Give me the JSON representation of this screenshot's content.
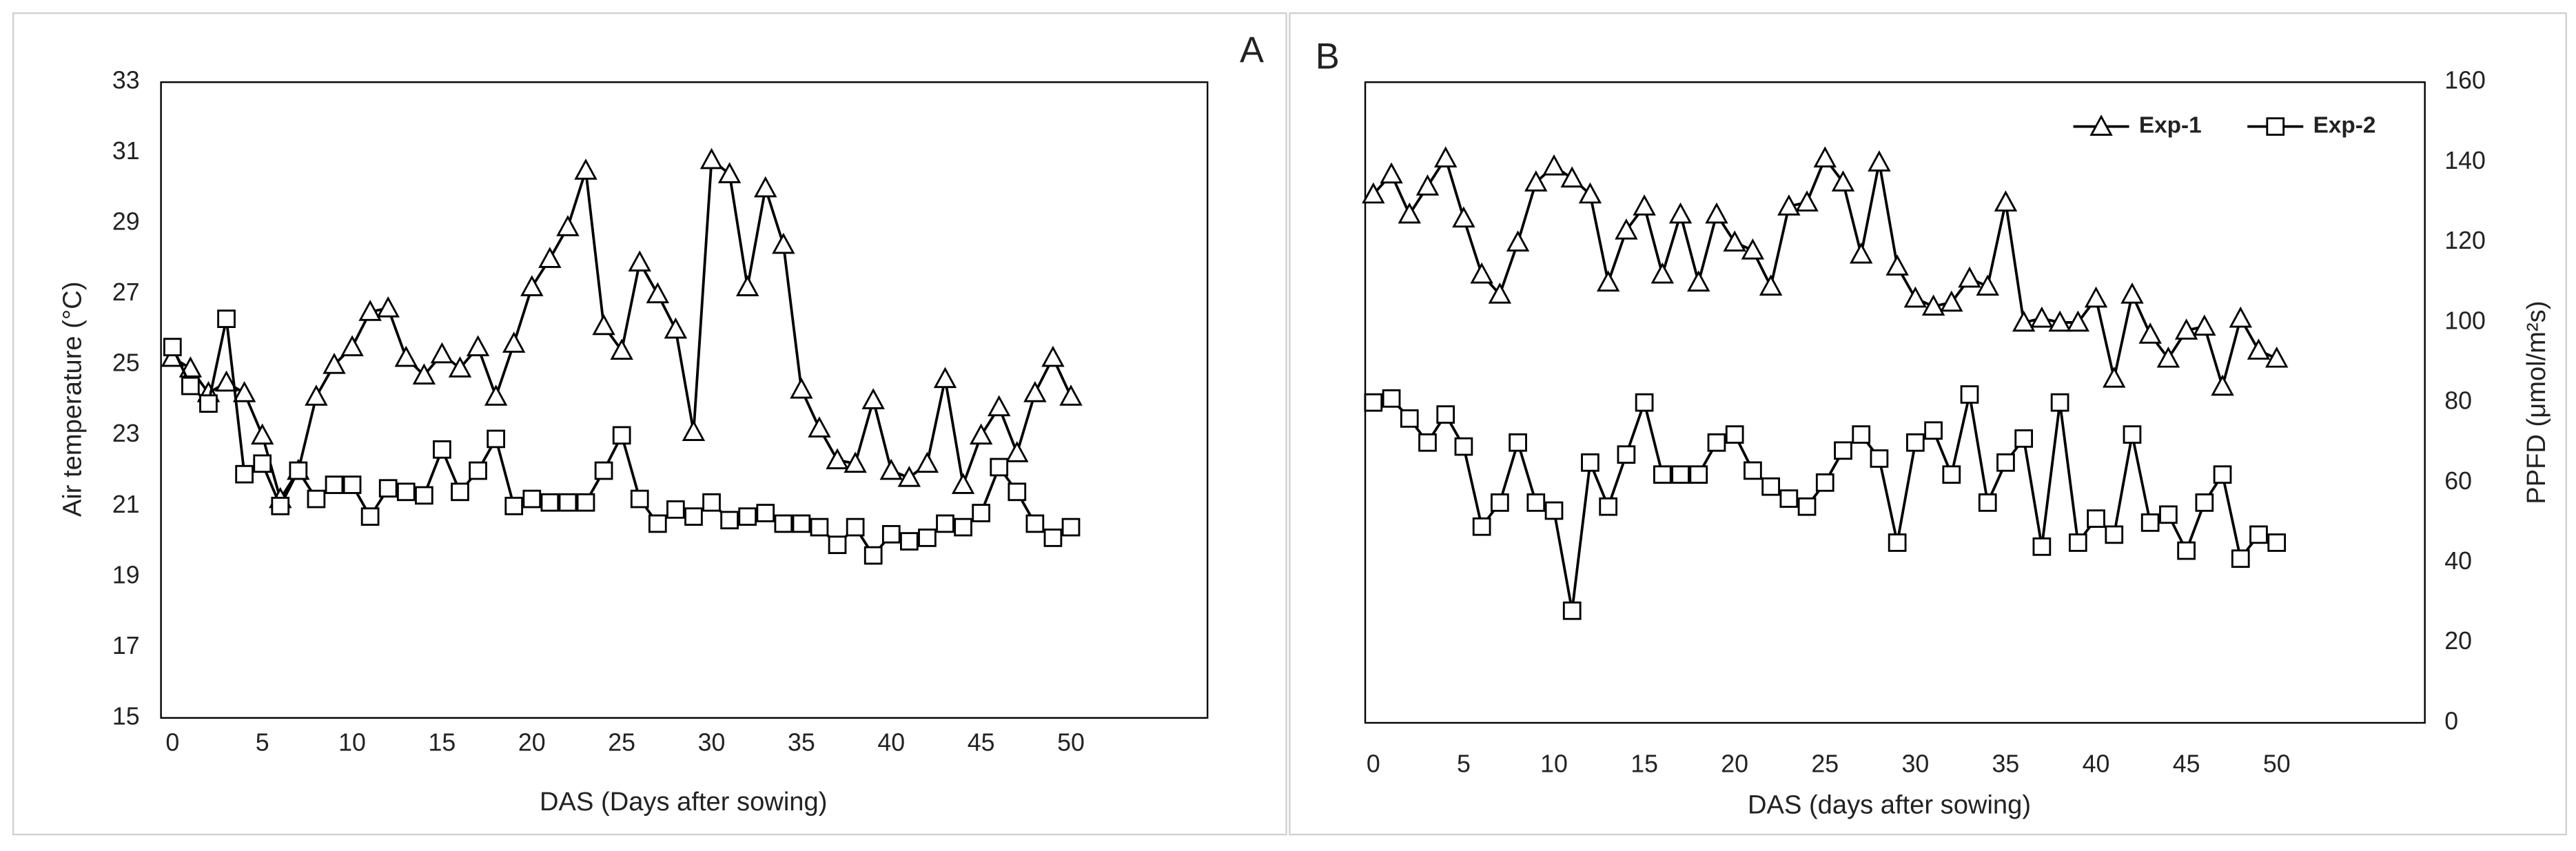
{
  "chart_data": [
    {
      "type": "line",
      "panel_label": "A",
      "y_label": "Air temperature (°C)",
      "x_label": "DAS (Days after sowing)",
      "x": [
        0,
        1,
        2,
        3,
        4,
        5,
        6,
        7,
        8,
        9,
        10,
        11,
        12,
        13,
        14,
        15,
        16,
        17,
        18,
        19,
        20,
        21,
        22,
        23,
        24,
        25,
        26,
        27,
        28,
        29,
        30,
        31,
        32,
        33,
        34,
        35,
        36,
        37,
        38,
        39,
        40,
        41,
        42,
        43,
        44,
        45,
        46,
        47,
        48,
        49,
        50
      ],
      "xlim": [
        -0.64,
        57.6
      ],
      "xticks": [
        0,
        5,
        10,
        15,
        20,
        25,
        30,
        35,
        40,
        45,
        50
      ],
      "ylim": [
        15,
        33
      ],
      "yticks": [
        15,
        17,
        19,
        21,
        23,
        25,
        27,
        29,
        31,
        33
      ],
      "yaxis_position": "left",
      "series": [
        {
          "marker": "triangle",
          "color": "#000000",
          "values": [
            25.2,
            24.9,
            24.2,
            24.5,
            24.2,
            23.0,
            21.2,
            22.0,
            24.1,
            25.0,
            25.5,
            26.5,
            26.6,
            25.2,
            24.7,
            25.3,
            24.9,
            25.5,
            24.1,
            25.6,
            27.2,
            28.0,
            28.9,
            30.5,
            26.1,
            25.4,
            27.9,
            27.0,
            26.0,
            23.1,
            30.8,
            30.4,
            27.2,
            30.0,
            28.4,
            24.3,
            23.2,
            22.3,
            22.2,
            24.0,
            22.0,
            21.8,
            22.2,
            24.6,
            21.6,
            23.0,
            23.8,
            22.5,
            24.2,
            25.2,
            24.1
          ]
        },
        {
          "marker": "square",
          "color": "#000000",
          "values": [
            25.5,
            24.4,
            23.9,
            26.3,
            21.9,
            22.2,
            21.0,
            22.0,
            21.2,
            21.6,
            21.6,
            20.7,
            21.5,
            21.4,
            21.3,
            22.6,
            21.4,
            22.0,
            22.9,
            21.0,
            21.2,
            21.1,
            21.1,
            21.1,
            22.0,
            23.0,
            21.2,
            20.5,
            20.9,
            20.7,
            21.1,
            20.6,
            20.7,
            20.8,
            20.5,
            20.5,
            20.4,
            19.9,
            20.4,
            19.6,
            20.2,
            20.0,
            20.1,
            20.5,
            20.4,
            20.8,
            22.1,
            21.4,
            20.5,
            20.1,
            20.4
          ]
        }
      ]
    },
    {
      "type": "line",
      "panel_label": "B",
      "y_label": "PPFD (μmol/m²s)",
      "x_label": "DAS (days after sowing)",
      "x": [
        0,
        1,
        2,
        3,
        4,
        5,
        6,
        7,
        8,
        9,
        10,
        11,
        12,
        13,
        14,
        15,
        16,
        17,
        18,
        19,
        20,
        21,
        22,
        23,
        24,
        25,
        26,
        27,
        28,
        29,
        30,
        31,
        32,
        33,
        34,
        35,
        36,
        37,
        38,
        39,
        40,
        41,
        42,
        43,
        44,
        45,
        46,
        47,
        48,
        49,
        50
      ],
      "xlim": [
        -0.45,
        58.2
      ],
      "xticks": [
        0,
        5,
        10,
        15,
        20,
        25,
        30,
        35,
        40,
        45,
        50
      ],
      "ylim": [
        0,
        160
      ],
      "yticks": [
        0,
        20,
        40,
        60,
        80,
        100,
        120,
        140,
        160
      ],
      "yaxis_position": "right",
      "legend": "top-right",
      "series": [
        {
          "name": "Exp-1",
          "marker": "triangle",
          "color": "#000000",
          "values": [
            132,
            137,
            127,
            134,
            141,
            126,
            112,
            107,
            120,
            135,
            139,
            136,
            132,
            110,
            123,
            129,
            112,
            127,
            110,
            127,
            120,
            118,
            109,
            129,
            130,
            141,
            135,
            117,
            140,
            114,
            106,
            104,
            105,
            111,
            109,
            130,
            100,
            101,
            100,
            100,
            106,
            86,
            107,
            97,
            91,
            98,
            99,
            84,
            101,
            93,
            91
          ]
        },
        {
          "name": "Exp-2",
          "marker": "square",
          "color": "#000000",
          "values": [
            80,
            81,
            76,
            70,
            77,
            69,
            49,
            55,
            70,
            55,
            53,
            28,
            65,
            54,
            67,
            80,
            62,
            62,
            62,
            70,
            72,
            63,
            59,
            56,
            54,
            60,
            68,
            72,
            66,
            45,
            70,
            73,
            62,
            82,
            55,
            65,
            71,
            44,
            80,
            45,
            51,
            47,
            72,
            50,
            52,
            43,
            55,
            62,
            41,
            47,
            45
          ]
        }
      ]
    }
  ]
}
